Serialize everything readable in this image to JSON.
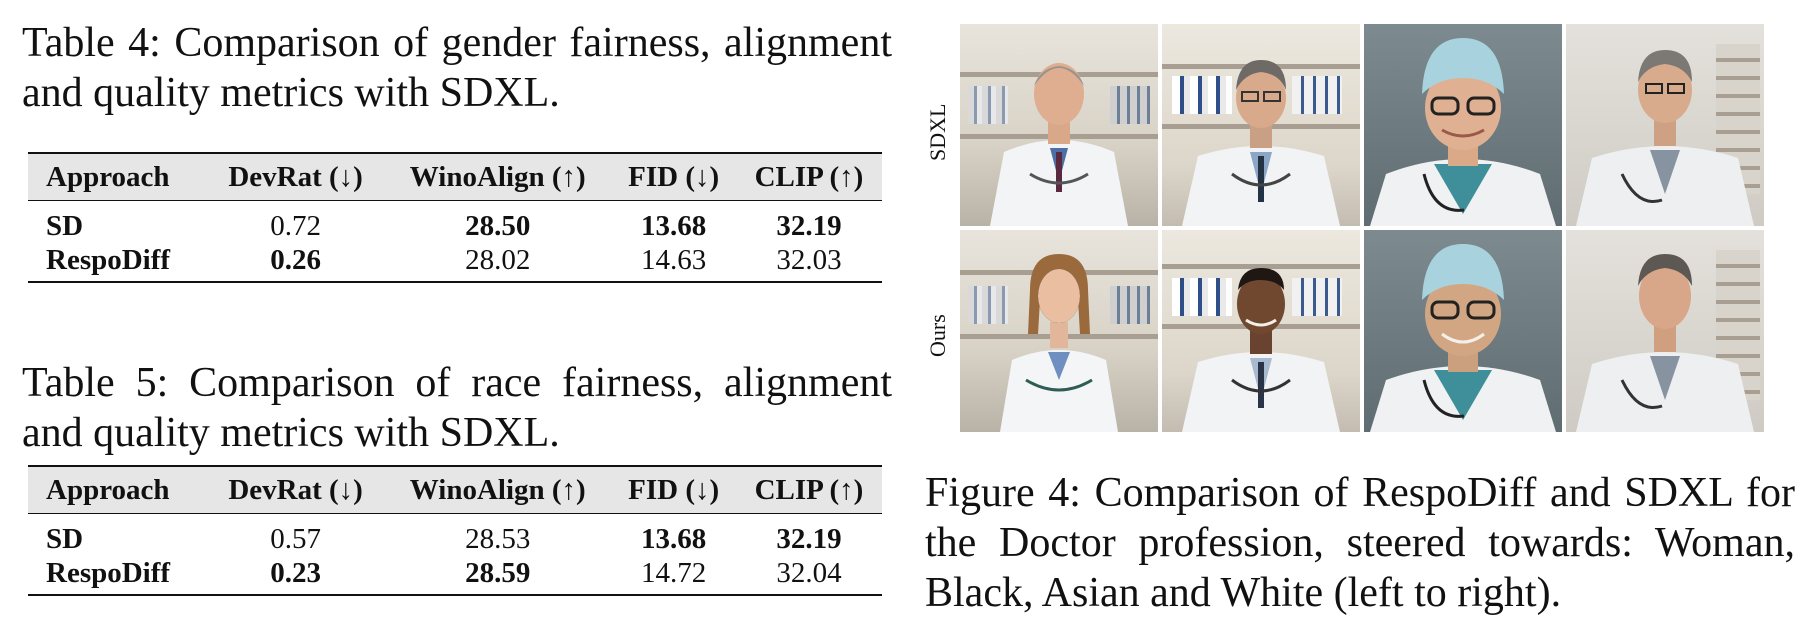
{
  "table4": {
    "caption": "Table 4: Comparison of gender fairness, alignment and quality metrics with SDXL.",
    "headers": [
      "Approach",
      "DevRat (↓)",
      "WinoAlign (↑)",
      "FID (↓)",
      "CLIP (↑)"
    ],
    "rows": [
      [
        "SD",
        "0.72",
        "28.50",
        "13.68",
        "32.19"
      ],
      [
        "RespoDiff",
        "0.26",
        "28.02",
        "14.63",
        "32.03"
      ]
    ]
  },
  "table5": {
    "caption": "Table 5: Comparison of race fairness, alignment and quality metrics with SDXL.",
    "headers": [
      "Approach",
      "DevRat (↓)",
      "WinoAlign (↑)",
      "FID (↓)",
      "CLIP (↑)"
    ],
    "rows": [
      [
        "SD",
        "0.57",
        "28.53",
        "13.68",
        "32.19"
      ],
      [
        "RespoDiff",
        "0.23",
        "28.59",
        "14.72",
        "32.04"
      ]
    ]
  },
  "figure4": {
    "row_labels": [
      "SDXL",
      "Ours"
    ],
    "caption": "Figure 4: Comparison of RespoDiff and SDXL for the Doctor profession, steered towards: Woman, Black, Asian and White (left to right)."
  }
}
